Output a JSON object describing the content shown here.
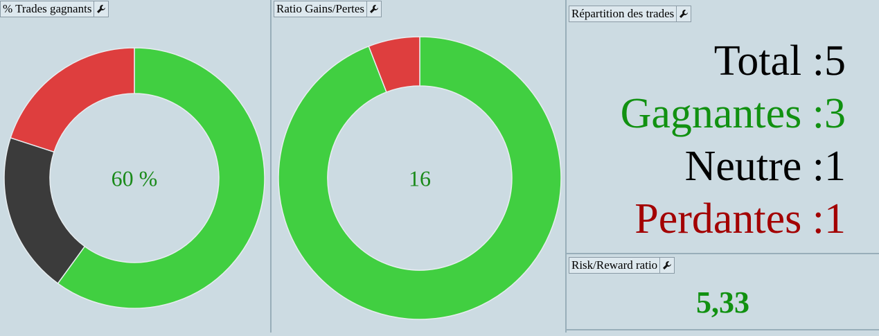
{
  "chart_data": [
    {
      "type": "donut",
      "title": "% Trades gagnants",
      "center_label": "60 %",
      "categories": [
        "Gagnantes",
        "Neutre",
        "Perdantes"
      ],
      "values": [
        3,
        1,
        1
      ],
      "colors": [
        "#41cf41",
        "#3b3b3b",
        "#de3e3e"
      ],
      "center_color": "#1a8a1a"
    },
    {
      "type": "donut",
      "title": "Ratio Gains/Pertes",
      "center_label": "16",
      "categories": [
        "Gains",
        "Pertes"
      ],
      "values": [
        16,
        1
      ],
      "colors": [
        "#41cf41",
        "#de3e3e"
      ],
      "center_color": "#1a8a1a"
    }
  ],
  "summary": {
    "title": "Répartition des trades",
    "rows": [
      {
        "label": "Total :",
        "value": 5,
        "color": "#000000"
      },
      {
        "label": "Gagnantes :",
        "value": 3,
        "color": "#119111"
      },
      {
        "label": "Neutre :",
        "value": 1,
        "color": "#000000"
      },
      {
        "label": "Perdantes :",
        "value": 1,
        "color": "#a30000"
      }
    ]
  },
  "risk_reward": {
    "title": "Risk/Reward ratio",
    "value": "5,33",
    "color": "#119111"
  }
}
